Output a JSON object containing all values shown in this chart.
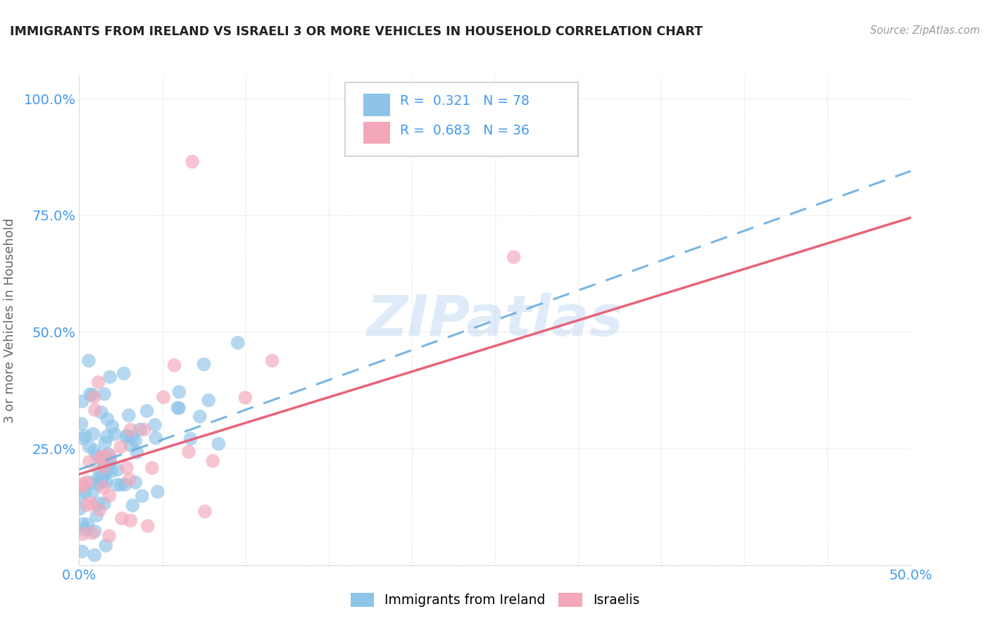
{
  "title": "IMMIGRANTS FROM IRELAND VS ISRAELI 3 OR MORE VEHICLES IN HOUSEHOLD CORRELATION CHART",
  "source": "Source: ZipAtlas.com",
  "ylabel_label": "3 or more Vehicles in Household",
  "legend_label1": "Immigrants from Ireland",
  "legend_label2": "Israelis",
  "R1": 0.321,
  "N1": 78,
  "R2": 0.683,
  "N2": 36,
  "color1": "#8ec4e8",
  "color2": "#f4a7b9",
  "line1_color": "#6aaee0",
  "line2_color": "#e8637a",
  "watermark": "ZIPatlas",
  "xmin": 0.0,
  "xmax": 0.5,
  "ymin": 0.0,
  "ymax": 1.05,
  "line1_intercept": 0.205,
  "line1_slope": 1.28,
  "line2_intercept": 0.195,
  "line2_slope": 1.1,
  "tick_color": "#4499ee",
  "grid_color": "#dddddd",
  "title_color": "#222222",
  "source_color": "#999999",
  "ylabel_color": "#666666"
}
